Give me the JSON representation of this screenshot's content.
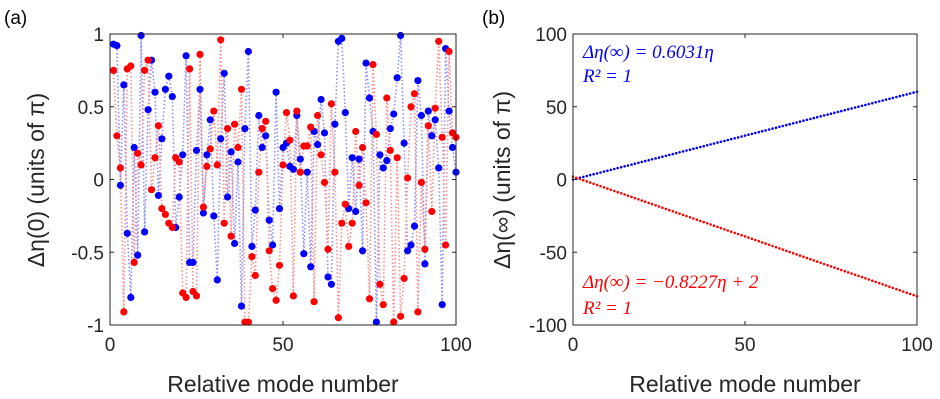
{
  "colors": {
    "blue": "#0000ff",
    "red": "#ff0000",
    "faint_blue": "#8c8cff",
    "faint_red": "#ff8c8c",
    "axis": "#262626"
  },
  "chart_data": [
    {
      "type": "scatter",
      "panel_label": "(a)",
      "xlabel": "Relative mode number",
      "ylabel": "Δη(0) (units of π)",
      "xlim": [
        0,
        100
      ],
      "ylim": [
        -1,
        1
      ],
      "xticks": [
        "0",
        "50",
        "100"
      ],
      "yticks": [
        "-1",
        "-0.5",
        "0",
        "0.5",
        "1"
      ],
      "grid": false,
      "series": [
        {
          "color": "#0000ff",
          "x": [
            1,
            2,
            3,
            4,
            5,
            6,
            7,
            8,
            9,
            10,
            11,
            12,
            13,
            14,
            15,
            16,
            17,
            18,
            19,
            20,
            21,
            22,
            23,
            24,
            25,
            26,
            27,
            28,
            29,
            30,
            31,
            32,
            33,
            34,
            35,
            36,
            37,
            38,
            39,
            40,
            41,
            42,
            43,
            44,
            45,
            46,
            47,
            48,
            49,
            50,
            51,
            52,
            53,
            54,
            55,
            56,
            57,
            58,
            59,
            60,
            61,
            62,
            63,
            64,
            65,
            66,
            67,
            68,
            69,
            70,
            71,
            72,
            73,
            74,
            75,
            76,
            77,
            78,
            79,
            80,
            81,
            82,
            83,
            84,
            85,
            86,
            87,
            88,
            89,
            90,
            91,
            92,
            93,
            94,
            95,
            96,
            97,
            98,
            99,
            100
          ],
          "y": [
            0.93,
            0.92,
            -0.04,
            0.65,
            -0.37,
            -0.81,
            0.22,
            -0.52,
            0.99,
            -0.36,
            0.48,
            0.82,
            0.6,
            -0.11,
            0.28,
            0.62,
            0.71,
            0.57,
            -0.33,
            -0.12,
            0.17,
            0.85,
            -0.57,
            -0.57,
            0.2,
            0.62,
            -0.23,
            0.17,
            0.41,
            -0.25,
            -0.69,
            0.28,
            0.73,
            -0.12,
            0.19,
            -0.44,
            0.12,
            -0.87,
            0.35,
            0.88,
            -0.46,
            -0.21,
            0.44,
            0.22,
            0.3,
            -0.28,
            -0.45,
            0.6,
            -0.2,
            0.22,
            0.25,
            0.09,
            0.07,
            0.44,
            0.14,
            -0.51,
            0.05,
            -0.6,
            0.33,
            0.24,
            0.55,
            0.32,
            -0.67,
            -0.72,
            0.38,
            0.95,
            0.97,
            0.46,
            -0.2,
            0.15,
            -0.22,
            0.14,
            -0.49,
            0.8,
            0.56,
            0.33,
            -0.98,
            0.17,
            0.08,
            0.13,
            0.35,
            0.45,
            0.7,
            0.99,
            0.25,
            -0.49,
            -0.45,
            -0.32,
            0.68,
            0.44,
            -0.58,
            0.47,
            0.3,
            0.41,
            0.08,
            -0.86,
            0.9,
            0.47,
            0.22,
            0.05
          ]
        },
        {
          "color": "#ff0000",
          "x": [
            1,
            2,
            3,
            4,
            5,
            6,
            7,
            8,
            9,
            10,
            11,
            12,
            13,
            14,
            15,
            16,
            17,
            18,
            19,
            20,
            21,
            22,
            23,
            24,
            25,
            26,
            27,
            28,
            29,
            30,
            31,
            32,
            33,
            34,
            35,
            36,
            37,
            38,
            39,
            40,
            41,
            42,
            43,
            44,
            45,
            46,
            47,
            48,
            49,
            50,
            51,
            52,
            53,
            54,
            55,
            56,
            57,
            58,
            59,
            60,
            61,
            62,
            63,
            64,
            65,
            66,
            67,
            68,
            69,
            70,
            71,
            72,
            73,
            74,
            75,
            76,
            77,
            78,
            79,
            80,
            81,
            82,
            83,
            84,
            85,
            86,
            87,
            88,
            89,
            90,
            91,
            92,
            93,
            94,
            95,
            96,
            97,
            98,
            99,
            100
          ],
          "y": [
            0.75,
            0.3,
            0.08,
            -0.91,
            0.76,
            0.78,
            -0.57,
            0.18,
            0.1,
            0.75,
            0.82,
            -0.07,
            0.15,
            0.37,
            -0.2,
            -0.24,
            -0.3,
            -0.33,
            0.15,
            0.12,
            -0.78,
            -0.81,
            0.76,
            -0.77,
            -0.8,
            0.86,
            -0.19,
            0.09,
            0.21,
            0.47,
            0.1,
            0.96,
            -0.3,
            0.35,
            -0.39,
            0.38,
            0.22,
            0.62,
            -0.98,
            -0.98,
            -0.53,
            -0.66,
            0.05,
            0.35,
            0.4,
            -0.49,
            -0.75,
            -0.83,
            -0.59,
            0.1,
            0.46,
            0.27,
            -0.8,
            0.47,
            0.05,
            0.23,
            0.23,
            0.36,
            -0.84,
            0.44,
            0.17,
            -0.02,
            -0.48,
            0.52,
            0.05,
            -0.95,
            -0.3,
            -0.17,
            -0.46,
            -0.3,
            0.33,
            -0.04,
            0.22,
            -0.16,
            -0.82,
            0.79,
            0.31,
            -0.72,
            -0.86,
            0.56,
            0.2,
            -0.98,
            0.15,
            -0.94,
            -0.68,
            0.01,
            0.5,
            0.59,
            -0.91,
            -0.02,
            -0.48,
            0.37,
            -0.22,
            0.49,
            0.95,
            0.29,
            -0.45,
            0.88,
            0.32,
            0.29
          ]
        }
      ]
    },
    {
      "type": "scatter",
      "panel_label": "(b)",
      "xlabel": "Relative mode number",
      "ylabel": "Δη(∞) (units of π)",
      "xlim": [
        0,
        100
      ],
      "ylim": [
        -100,
        100
      ],
      "xticks": [
        "0",
        "50",
        "100"
      ],
      "yticks": [
        "-100",
        "-50",
        "0",
        "50",
        "100"
      ],
      "grid": false,
      "series": [
        {
          "color": "#0000ff",
          "x_start": 0,
          "x_end": 100,
          "count": 101,
          "slope": 0.6031,
          "intercept": 0
        },
        {
          "color": "#ff0000",
          "x_start": 0,
          "x_end": 100,
          "count": 101,
          "slope": -0.8227,
          "intercept": 2
        }
      ],
      "annotations": [
        {
          "text": "Δη(∞) = 0.6031η",
          "color": "#0000ff"
        },
        {
          "text": "R² = 1",
          "color": "#0000ff"
        },
        {
          "text": "Δη(∞) = −0.8227η + 2",
          "color": "#ff0000"
        },
        {
          "text": "R² = 1",
          "color": "#ff0000"
        }
      ]
    }
  ]
}
